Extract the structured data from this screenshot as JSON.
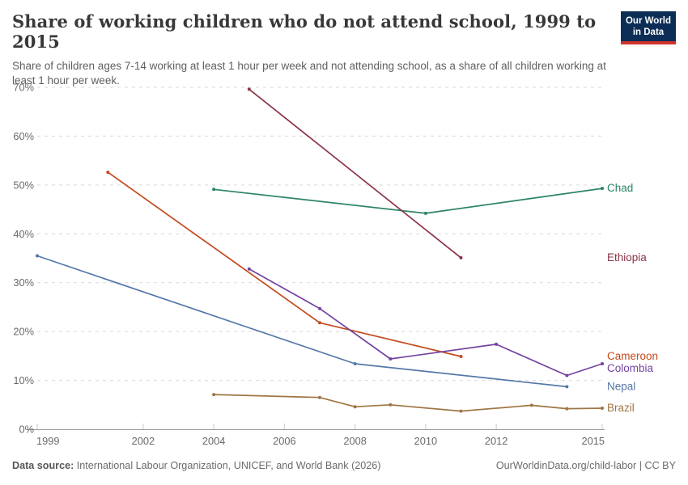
{
  "logo": {
    "line1": "Our World",
    "line2": "in Data",
    "bg_color": "#0c2d55",
    "accent_color": "#d0342c"
  },
  "footer": {
    "datasource_label": "Data source:",
    "datasource_text": " International Labour Organization, UNICEF, and World Bank (2026)",
    "link_text": "OurWorldinData.org/child-labor | CC BY"
  },
  "chart_data": {
    "type": "line",
    "title": "Share of working children who do not attend school, 1999 to 2015",
    "subtitle": "Share of children ages 7-14 working at least 1 hour per week and not attending school, as a share of all children working at least 1 hour per week.",
    "xlabel": "",
    "ylabel": "",
    "xlim": [
      1999,
      2015
    ],
    "ylim": [
      0,
      70
    ],
    "x_ticks": [
      1999,
      2002,
      2004,
      2006,
      2008,
      2010,
      2012,
      2015
    ],
    "y_ticks": [
      0,
      10,
      20,
      30,
      40,
      50,
      60,
      70
    ],
    "y_suffix": "%",
    "grid": "horizontal-dashed",
    "legend_position": "right-of-line-end",
    "colors": {
      "grid": "#d9d9d9",
      "axis": "#9b9b9b",
      "tick_mark": "#c9c9c9",
      "tick_text": "#696969"
    },
    "series": [
      {
        "name": "Chad",
        "color": "#2c8465",
        "points": [
          [
            2004,
            49.1
          ],
          [
            2010,
            44.2
          ],
          [
            2015,
            49.3
          ]
        ]
      },
      {
        "name": "Ethiopia",
        "color": "#8b3447",
        "points": [
          [
            2005,
            69.6
          ],
          [
            2011,
            35.1
          ]
        ]
      },
      {
        "name": "Cameroon",
        "color": "#c44a1d",
        "points": [
          [
            2001,
            52.6
          ],
          [
            2007,
            21.8
          ],
          [
            2011,
            14.9
          ]
        ]
      },
      {
        "name": "Colombia",
        "color": "#7443a0",
        "points": [
          [
            2005,
            32.8
          ],
          [
            2007,
            24.7
          ],
          [
            2009,
            14.4
          ],
          [
            2012,
            17.4
          ],
          [
            2014,
            11.0
          ],
          [
            2015,
            13.4
          ]
        ]
      },
      {
        "name": "Nepal",
        "color": "#5578a8",
        "points": [
          [
            1999,
            35.5
          ],
          [
            2008,
            13.4
          ],
          [
            2014,
            8.7
          ]
        ]
      },
      {
        "name": "Brazil",
        "color": "#9f7544",
        "points": [
          [
            2004,
            7.1
          ],
          [
            2007,
            6.5
          ],
          [
            2008,
            4.6
          ],
          [
            2009,
            5.0
          ],
          [
            2011,
            3.7
          ],
          [
            2013,
            4.9
          ],
          [
            2014,
            4.2
          ],
          [
            2015,
            4.3
          ]
        ]
      }
    ]
  }
}
